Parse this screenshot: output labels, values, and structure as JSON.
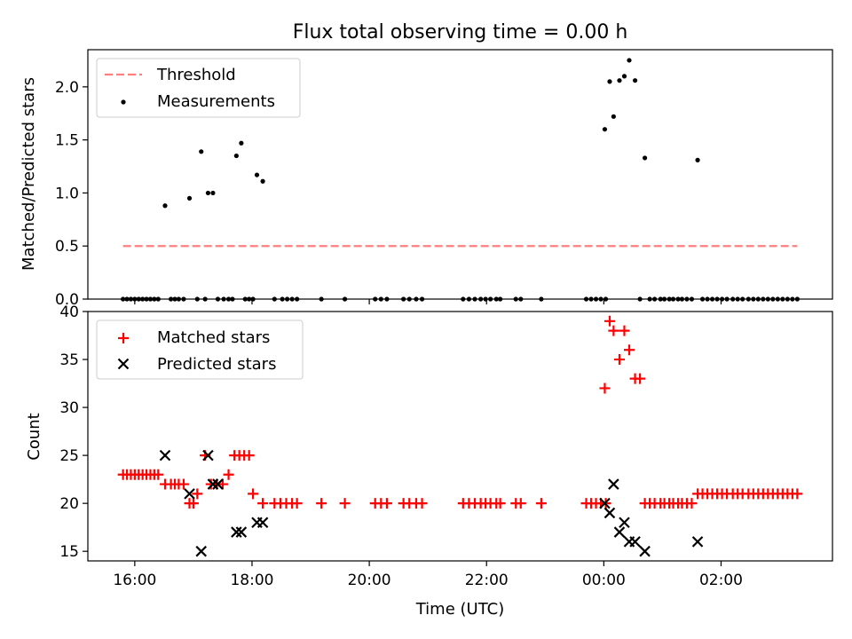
{
  "chart_data": [
    {
      "type": "scatter",
      "title": "Flux total observing time = 0.00 h",
      "ylabel": "Matched/Predicted stars",
      "xlim": [
        "15:12",
        "03:54"
      ],
      "ylim": [
        0,
        2.35
      ],
      "yticks": [
        "0.0",
        "0.5",
        "1.0",
        "1.5",
        "2.0"
      ],
      "legend_position": "top-left",
      "threshold": {
        "name": "Threshold",
        "value": 0.5,
        "x_range": [
          "15:48",
          "03:18"
        ],
        "color": "#ff7f7f"
      },
      "series": [
        {
          "name": "Measurements",
          "color": "#000000",
          "points": [
            [
              "15:48",
              0
            ],
            [
              "15:52",
              0
            ],
            [
              "15:56",
              0
            ],
            [
              "16:00",
              0
            ],
            [
              "16:04",
              0
            ],
            [
              "16:08",
              0
            ],
            [
              "16:12",
              0
            ],
            [
              "16:16",
              0
            ],
            [
              "16:20",
              0
            ],
            [
              "16:24",
              0
            ],
            [
              "16:31",
              0.88
            ],
            [
              "16:37",
              0
            ],
            [
              "16:41",
              0
            ],
            [
              "16:45",
              0
            ],
            [
              "16:50",
              0
            ],
            [
              "16:56",
              0.95
            ],
            [
              "17:04",
              0
            ],
            [
              "17:08",
              1.39
            ],
            [
              "17:12",
              0
            ],
            [
              "17:15",
              1.0
            ],
            [
              "17:20",
              1.0
            ],
            [
              "17:25",
              0
            ],
            [
              "17:31",
              0
            ],
            [
              "17:36",
              0
            ],
            [
              "17:40",
              0
            ],
            [
              "17:44",
              1.35
            ],
            [
              "17:49",
              1.47
            ],
            [
              "17:53",
              0
            ],
            [
              "17:57",
              0
            ],
            [
              "18:01",
              0
            ],
            [
              "18:05",
              1.17
            ],
            [
              "18:11",
              1.11
            ],
            [
              "18:23",
              0
            ],
            [
              "18:31",
              0
            ],
            [
              "18:36",
              0
            ],
            [
              "18:41",
              0
            ],
            [
              "18:46",
              0
            ],
            [
              "19:11",
              0
            ],
            [
              "19:35",
              0
            ],
            [
              "20:06",
              0
            ],
            [
              "20:12",
              0
            ],
            [
              "20:18",
              0
            ],
            [
              "20:35",
              0
            ],
            [
              "20:41",
              0
            ],
            [
              "20:48",
              0
            ],
            [
              "20:54",
              0
            ],
            [
              "21:36",
              0
            ],
            [
              "21:42",
              0
            ],
            [
              "21:48",
              0
            ],
            [
              "21:54",
              0
            ],
            [
              "21:59",
              0
            ],
            [
              "22:04",
              0
            ],
            [
              "22:10",
              0
            ],
            [
              "22:14",
              0
            ],
            [
              "22:30",
              0
            ],
            [
              "22:35",
              0
            ],
            [
              "22:56",
              0
            ],
            [
              "23:42",
              0
            ],
            [
              "23:47",
              0
            ],
            [
              "23:52",
              0
            ],
            [
              "23:57",
              0
            ],
            [
              "00:02",
              0
            ],
            [
              "00:01",
              1.6
            ],
            [
              "00:06",
              2.05
            ],
            [
              "00:10",
              1.72
            ],
            [
              "00:16",
              2.06
            ],
            [
              "00:21",
              2.1
            ],
            [
              "00:26",
              2.25
            ],
            [
              "00:32",
              2.06
            ],
            [
              "00:37",
              0
            ],
            [
              "00:42",
              1.33
            ],
            [
              "00:47",
              0
            ],
            [
              "00:52",
              0
            ],
            [
              "00:58",
              0
            ],
            [
              "01:02",
              0
            ],
            [
              "01:07",
              0
            ],
            [
              "01:11",
              0
            ],
            [
              "01:16",
              0
            ],
            [
              "01:20",
              0
            ],
            [
              "01:25",
              0
            ],
            [
              "01:30",
              0
            ],
            [
              "01:36",
              1.31
            ],
            [
              "01:41",
              0
            ],
            [
              "01:46",
              0
            ],
            [
              "01:51",
              0
            ],
            [
              "01:56",
              0
            ],
            [
              "02:01",
              0
            ],
            [
              "02:06",
              0
            ],
            [
              "02:12",
              0
            ],
            [
              "02:17",
              0
            ],
            [
              "02:22",
              0
            ],
            [
              "02:28",
              0
            ],
            [
              "02:33",
              0
            ],
            [
              "02:38",
              0
            ],
            [
              "02:43",
              0
            ],
            [
              "02:48",
              0
            ],
            [
              "02:53",
              0
            ],
            [
              "02:58",
              0
            ],
            [
              "03:03",
              0
            ],
            [
              "03:08",
              0
            ],
            [
              "03:13",
              0
            ],
            [
              "03:18",
              0
            ]
          ]
        }
      ]
    },
    {
      "type": "scatter",
      "xlabel": "Time (UTC)",
      "ylabel": "Count",
      "xlim": [
        "15:12",
        "03:54"
      ],
      "ylim": [
        14,
        40
      ],
      "yticks": [
        "15",
        "20",
        "25",
        "30",
        "35",
        "40"
      ],
      "xticks": [
        "16:00",
        "18:00",
        "20:00",
        "22:00",
        "00:00",
        "02:00"
      ],
      "legend_position": "top-left",
      "series": [
        {
          "name": "Matched stars",
          "marker": "plus",
          "color": "#ff0000",
          "points": [
            [
              "15:48",
              23
            ],
            [
              "15:52",
              23
            ],
            [
              "15:56",
              23
            ],
            [
              "16:00",
              23
            ],
            [
              "16:04",
              23
            ],
            [
              "16:08",
              23
            ],
            [
              "16:12",
              23
            ],
            [
              "16:16",
              23
            ],
            [
              "16:20",
              23
            ],
            [
              "16:24",
              23
            ],
            [
              "16:31",
              22
            ],
            [
              "16:37",
              22
            ],
            [
              "16:41",
              22
            ],
            [
              "16:45",
              22
            ],
            [
              "16:50",
              22
            ],
            [
              "16:56",
              20
            ],
            [
              "17:00",
              20
            ],
            [
              "17:04",
              21
            ],
            [
              "17:12",
              25
            ],
            [
              "17:18",
              22
            ],
            [
              "17:24",
              22
            ],
            [
              "17:30",
              22
            ],
            [
              "17:36",
              23
            ],
            [
              "17:42",
              25
            ],
            [
              "17:47",
              25
            ],
            [
              "17:52",
              25
            ],
            [
              "17:57",
              25
            ],
            [
              "18:01",
              21
            ],
            [
              "18:11",
              20
            ],
            [
              "18:23",
              20
            ],
            [
              "18:29",
              20
            ],
            [
              "18:35",
              20
            ],
            [
              "18:41",
              20
            ],
            [
              "18:46",
              20
            ],
            [
              "19:11",
              20
            ],
            [
              "19:35",
              20
            ],
            [
              "20:06",
              20
            ],
            [
              "20:12",
              20
            ],
            [
              "20:18",
              20
            ],
            [
              "20:35",
              20
            ],
            [
              "20:41",
              20
            ],
            [
              "20:48",
              20
            ],
            [
              "20:54",
              20
            ],
            [
              "21:36",
              20
            ],
            [
              "21:42",
              20
            ],
            [
              "21:48",
              20
            ],
            [
              "21:54",
              20
            ],
            [
              "21:59",
              20
            ],
            [
              "22:04",
              20
            ],
            [
              "22:10",
              20
            ],
            [
              "22:14",
              20
            ],
            [
              "22:30",
              20
            ],
            [
              "22:35",
              20
            ],
            [
              "22:56",
              20
            ],
            [
              "23:42",
              20
            ],
            [
              "23:47",
              20
            ],
            [
              "23:52",
              20
            ],
            [
              "23:57",
              20
            ],
            [
              "00:02",
              20
            ],
            [
              "00:01",
              32
            ],
            [
              "00:06",
              39
            ],
            [
              "00:10",
              38
            ],
            [
              "00:16",
              35
            ],
            [
              "00:21",
              38
            ],
            [
              "00:26",
              36
            ],
            [
              "00:32",
              33
            ],
            [
              "00:37",
              33
            ],
            [
              "00:42",
              20
            ],
            [
              "00:47",
              20
            ],
            [
              "00:52",
              20
            ],
            [
              "00:58",
              20
            ],
            [
              "01:02",
              20
            ],
            [
              "01:07",
              20
            ],
            [
              "01:11",
              20
            ],
            [
              "01:16",
              20
            ],
            [
              "01:20",
              20
            ],
            [
              "01:25",
              20
            ],
            [
              "01:30",
              20
            ],
            [
              "01:36",
              21
            ],
            [
              "01:41",
              21
            ],
            [
              "01:46",
              21
            ],
            [
              "01:51",
              21
            ],
            [
              "01:56",
              21
            ],
            [
              "02:01",
              21
            ],
            [
              "02:06",
              21
            ],
            [
              "02:12",
              21
            ],
            [
              "02:17",
              21
            ],
            [
              "02:22",
              21
            ],
            [
              "02:28",
              21
            ],
            [
              "02:33",
              21
            ],
            [
              "02:38",
              21
            ],
            [
              "02:43",
              21
            ],
            [
              "02:48",
              21
            ],
            [
              "02:53",
              21
            ],
            [
              "02:58",
              21
            ],
            [
              "03:03",
              21
            ],
            [
              "03:08",
              21
            ],
            [
              "03:13",
              21
            ],
            [
              "03:18",
              21
            ]
          ]
        },
        {
          "name": "Predicted stars",
          "marker": "x",
          "color": "#000000",
          "points": [
            [
              "16:31",
              25
            ],
            [
              "16:56",
              21
            ],
            [
              "17:08",
              15
            ],
            [
              "17:15",
              25
            ],
            [
              "17:20",
              22
            ],
            [
              "17:25",
              22
            ],
            [
              "17:44",
              17
            ],
            [
              "17:49",
              17
            ],
            [
              "18:05",
              18
            ],
            [
              "18:11",
              18
            ],
            [
              "00:01",
              20
            ],
            [
              "00:06",
              19
            ],
            [
              "00:10",
              22
            ],
            [
              "00:16",
              17
            ],
            [
              "00:21",
              18
            ],
            [
              "00:26",
              16
            ],
            [
              "00:32",
              16
            ],
            [
              "00:42",
              15
            ],
            [
              "01:36",
              16
            ]
          ]
        }
      ]
    }
  ]
}
